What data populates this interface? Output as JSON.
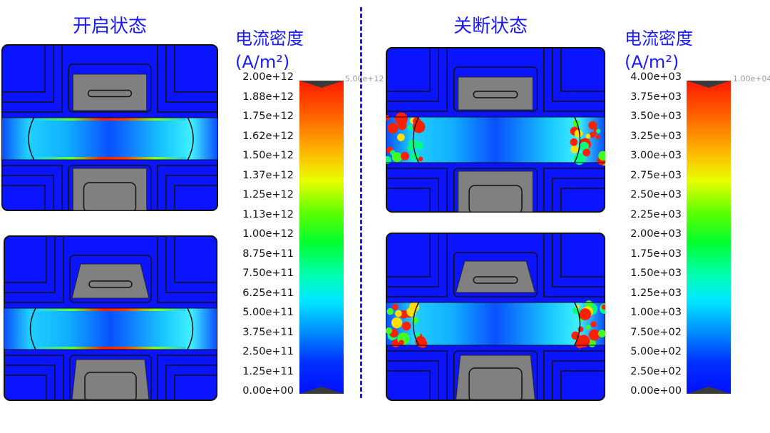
{
  "left": {
    "title": "开启状态",
    "colorbar": {
      "label": "电流密度",
      "unit": "(A/m²)",
      "max_marker": "5.00e+12",
      "ticks": [
        "2.00e+12",
        "1.88e+12",
        "1.75e+12",
        "1.62e+12",
        "1.50e+12",
        "1.37e+12",
        "1.25e+12",
        "1.13e+12",
        "1.00e+12",
        "8.75e+11",
        "7.50e+11",
        "6.25e+11",
        "5.00e+11",
        "3.75e+11",
        "2.50e+11",
        "1.25e+11",
        "0.00e+00"
      ]
    }
  },
  "right": {
    "title": "关断状态",
    "colorbar": {
      "label": "电流密度",
      "unit": "(A/m²)",
      "max_marker": "1.00e+04",
      "ticks": [
        "4.00e+03",
        "3.75e+03",
        "3.50e+03",
        "3.25e+03",
        "3.00e+03",
        "2.75e+03",
        "2.50e+03",
        "2.25e+03",
        "2.00e+03",
        "1.75e+03",
        "1.50e+03",
        "1.25e+03",
        "1.00e+03",
        "7.50e+02",
        "5.00e+02",
        "2.50e+02",
        "0.00e+00"
      ]
    }
  },
  "colors": {
    "title": "#1a1aff",
    "background_field": "#0a14ff",
    "electrode": "#808080"
  },
  "colormap": "rainbow (blue to red)"
}
